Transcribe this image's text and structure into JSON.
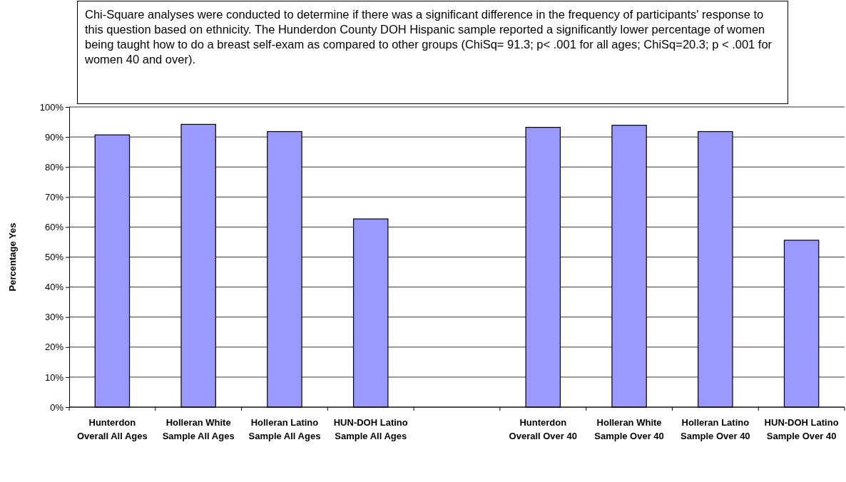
{
  "chart_data": {
    "type": "bar",
    "ylabel": "Percentage Yes",
    "categories": [
      "Hunterdon Overall All Ages",
      "Holleran White Sample All Ages",
      "Holleran Latino Sample All Ages",
      "HUN-DOH Latino Sample All Ages",
      null,
      "Hunterdon Overall Over 40",
      "Holleran White Sample Over 40",
      "Holleran Latino Sample Over 40",
      "HUN-DOH Latino Sample Over 40"
    ],
    "values": [
      90.7,
      94.2,
      91.8,
      62.7,
      null,
      93.2,
      93.9,
      91.8,
      55.6
    ],
    "color": "#9999ff",
    "ylim": [
      0,
      100
    ],
    "yticks": [
      {
        "value": 0,
        "label": "0%"
      },
      {
        "value": 10,
        "label": "10%"
      },
      {
        "value": 20,
        "label": "20%"
      },
      {
        "value": 30,
        "label": "30%"
      },
      {
        "value": 40,
        "label": "40%"
      },
      {
        "value": 50,
        "label": "50%"
      },
      {
        "value": 60,
        "label": "60%"
      },
      {
        "value": 70,
        "label": "70%"
      },
      {
        "value": 80,
        "label": "80%"
      },
      {
        "value": 90,
        "label": "90%"
      },
      {
        "value": 100,
        "label": "100%"
      }
    ],
    "grid": "y",
    "annotations": [
      "Chi-Square analyses were conducted to determine if there was a significant difference in the frequency of participants' response to this question based on ethnicity.  The Hunderdon County DOH Hispanic sample reported a significantly lower percentage of women being taught how to do a breast self-exam as compared to other groups (ChiSq= 91.3;  p< .001 for all ages;  ChiSq=20.3; p < .001 for women 40 and over)."
    ]
  }
}
